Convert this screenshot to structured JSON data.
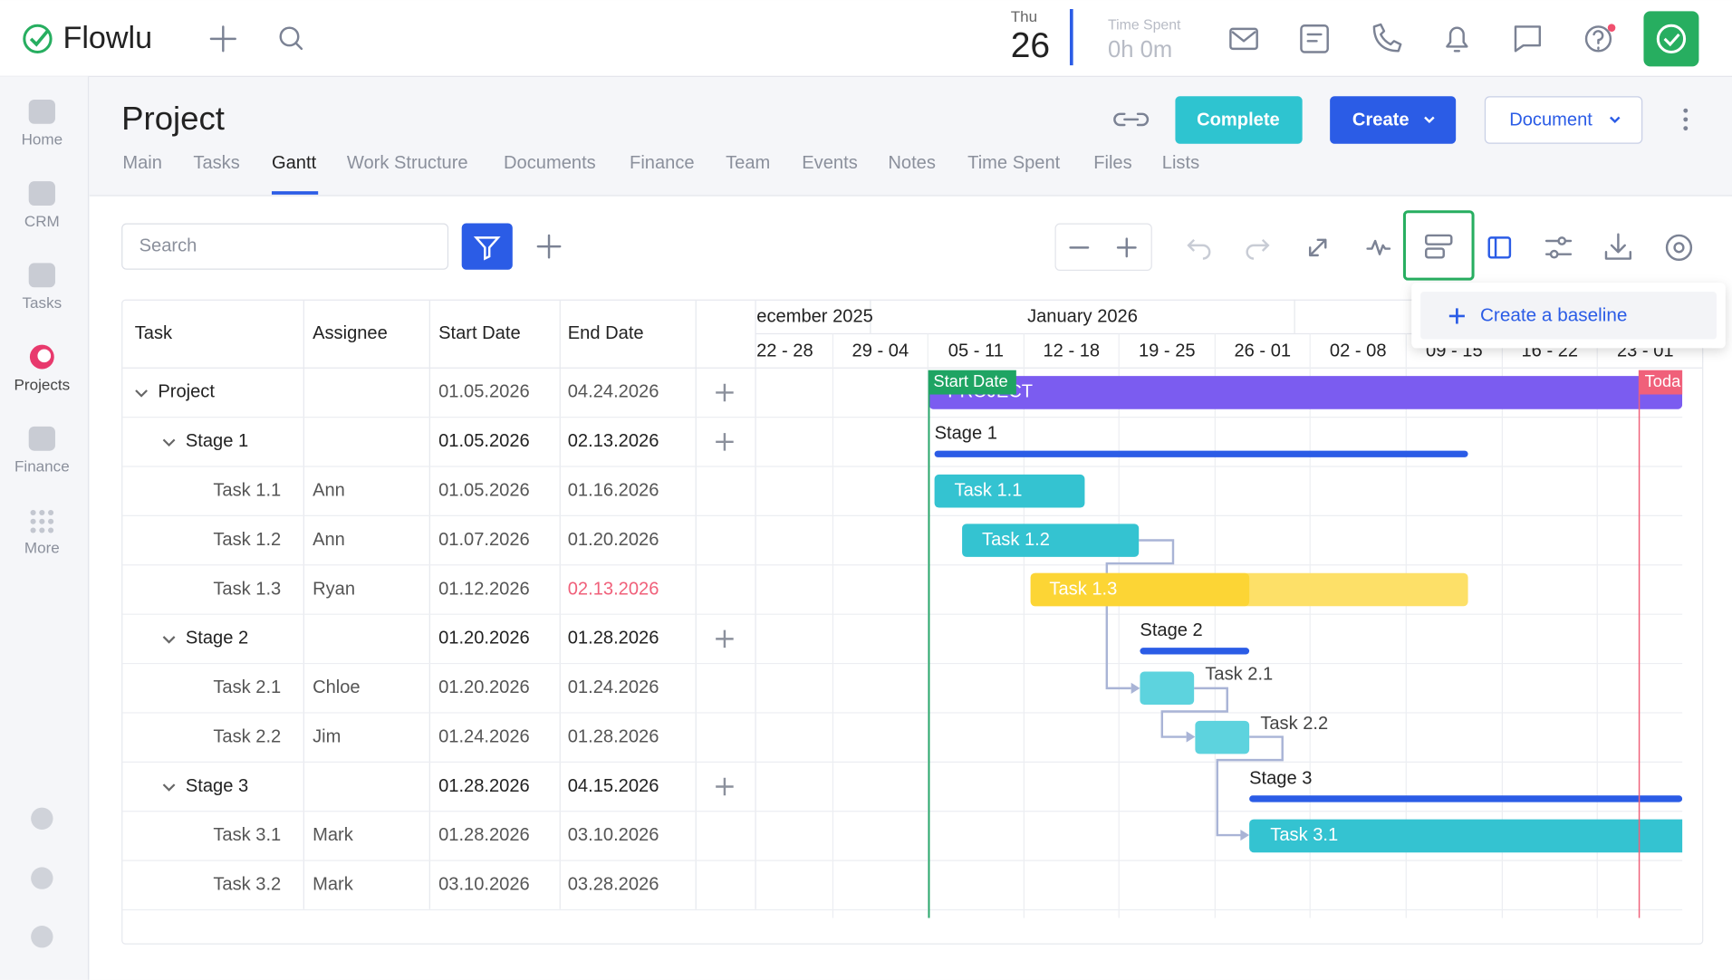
{
  "header": {
    "logo": "Flowlu",
    "day_name": "Thu",
    "day_number": "26",
    "time_spent_label": "Time Spent",
    "time_spent_value": "0h 0m"
  },
  "sidebar": [
    "Home",
    "CRM",
    "Tasks",
    "Projects",
    "Finance",
    "More"
  ],
  "project": {
    "title": "Project",
    "tabs": [
      "Main",
      "Tasks",
      "Gantt",
      "Work Structure",
      "Documents",
      "Finance",
      "Team",
      "Events",
      "Notes",
      "Time Spent",
      "Files",
      "Lists"
    ],
    "buttons": {
      "complete": "Complete",
      "create": "Create",
      "document": "Document"
    }
  },
  "toolbar": {
    "search_placeholder": "Search"
  },
  "dropdown": {
    "create_baseline": "Create a baseline"
  },
  "table": {
    "columns": [
      "Task",
      "Assignee",
      "Start Date",
      "End Date"
    ],
    "rows": [
      [
        "Project",
        null,
        "01.05.2026",
        "04.24.2026"
      ],
      [
        "Stage 1",
        null,
        "01.05.2026",
        "02.13.2026"
      ],
      [
        "Task 1.1",
        "Ann",
        "01.05.2026",
        "01.16.2026"
      ],
      [
        "Task 1.2",
        "Ann",
        "01.07.2026",
        "01.20.2026"
      ],
      [
        "Task 1.3",
        "Ryan",
        "01.12.2026",
        "02.13.2026"
      ],
      [
        "Stage 2",
        null,
        "01.20.2026",
        "01.28.2026"
      ],
      [
        "Task 2.1",
        "Chloe",
        "01.20.2026",
        "01.24.2026"
      ],
      [
        "Task 2.2",
        "Jim",
        "01.24.2026",
        "01.28.2026"
      ],
      [
        "Stage 3",
        null,
        "01.28.2026",
        "04.15.2026"
      ],
      [
        "Task 3.1",
        "Mark",
        "01.28.2026",
        "03.10.2026"
      ],
      [
        "Task 3.2",
        "Mark",
        "03.10.2026",
        "03.28.2026"
      ]
    ]
  },
  "gantt": {
    "months": [
      "ecember 2025",
      "January 2026"
    ],
    "weeks": [
      "22 - 28",
      "29 - 04",
      "05 - 11",
      "12 - 18",
      "19 - 25",
      "26 - 01",
      "02 - 08",
      "09 - 15",
      "16 - 22",
      "23 - 01"
    ],
    "start_marker": "Start Date",
    "today_marker": "Toda"
  }
}
